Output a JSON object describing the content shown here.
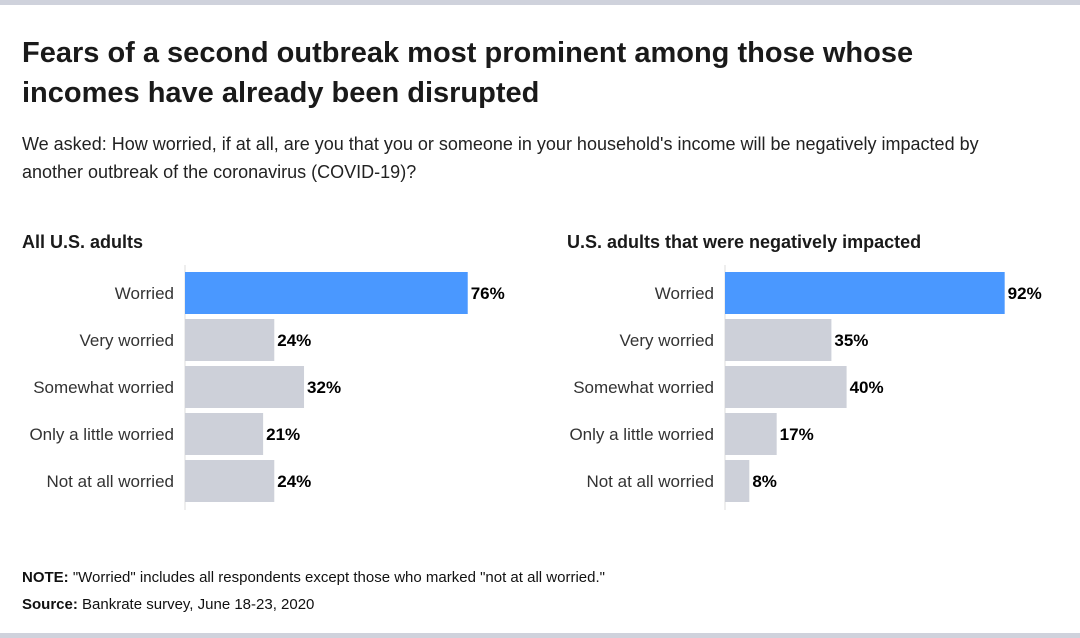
{
  "title": "Fears of a second outbreak most prominent among those whose incomes have already been disrupted",
  "subtitle": "We asked: How worried, if at all, are you that you or someone in your household's income will be negatively impacted by another outbreak of the coronavirus (COVID-19)?",
  "chart_data": [
    {
      "type": "bar",
      "orientation": "horizontal",
      "title": "All U.S. adults",
      "categories": [
        "Worried",
        "Very worried",
        "Somewhat worried",
        "Only a little worried",
        "Not at all worried"
      ],
      "values": [
        76,
        24,
        32,
        21,
        24
      ],
      "labels": [
        "76%",
        "24%",
        "32%",
        "21%",
        "24%"
      ],
      "xlim": [
        0,
        100
      ]
    },
    {
      "type": "bar",
      "orientation": "horizontal",
      "title": "U.S. adults that were negatively impacted",
      "categories": [
        "Worried",
        "Very worried",
        "Somewhat worried",
        "Only a little worried",
        "Not at all worried"
      ],
      "values": [
        92,
        35,
        40,
        17,
        8
      ],
      "labels": [
        "92%",
        "35%",
        "40%",
        "17%",
        "8%"
      ],
      "xlim": [
        0,
        100
      ]
    }
  ],
  "colors": {
    "highlight": "#4a98ff",
    "default": "#cdd0d9",
    "axis": "#dddddd"
  },
  "note": {
    "label": "NOTE:",
    "text": " \"Worried\" includes all respondents except those who marked \"not at all worried.\""
  },
  "source": {
    "label": "Source:",
    "text": " Bankrate survey, June 18-23, 2020"
  }
}
